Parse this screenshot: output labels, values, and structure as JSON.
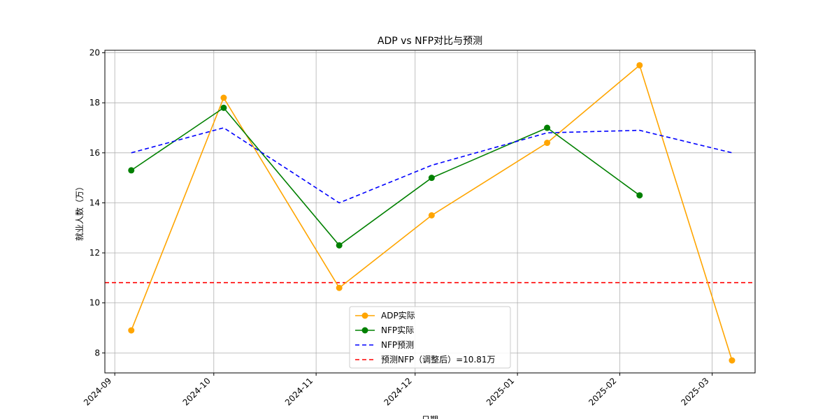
{
  "chart_data": {
    "type": "line",
    "title": "ADP vs NFP对比与预测",
    "xlabel": "日期",
    "ylabel": "就业人数（万）",
    "x_ticks": [
      "2024-09",
      "2024-10",
      "2024-11",
      "2024-12",
      "2025-01",
      "2025-02",
      "2025-03"
    ],
    "ylim": [
      7.2,
      20.1
    ],
    "y_ticks": [
      8,
      10,
      12,
      14,
      16,
      18,
      20
    ],
    "grid": true,
    "legend_position": "bottom-center",
    "series": [
      {
        "name": "ADP实际",
        "color": "#ffa500",
        "style": "solid",
        "marker": true,
        "points": [
          {
            "x": "2024-09-06",
            "y": 8.9
          },
          {
            "x": "2024-10-04",
            "y": 18.2
          },
          {
            "x": "2024-11-08",
            "y": 10.6
          },
          {
            "x": "2024-12-06",
            "y": 13.5
          },
          {
            "x": "2025-01-10",
            "y": 16.4
          },
          {
            "x": "2025-02-07",
            "y": 19.5
          },
          {
            "x": "2025-03-07",
            "y": 7.7
          }
        ]
      },
      {
        "name": "NFP实际",
        "color": "#008000",
        "style": "solid",
        "marker": true,
        "points": [
          {
            "x": "2024-09-06",
            "y": 15.3
          },
          {
            "x": "2024-10-04",
            "y": 17.8
          },
          {
            "x": "2024-11-08",
            "y": 12.3
          },
          {
            "x": "2024-12-06",
            "y": 15.0
          },
          {
            "x": "2025-01-10",
            "y": 17.0
          },
          {
            "x": "2025-02-07",
            "y": 14.3
          }
        ]
      },
      {
        "name": "NFP预测",
        "color": "#0000ff",
        "style": "dashed",
        "marker": false,
        "points": [
          {
            "x": "2024-09-06",
            "y": 16.0
          },
          {
            "x": "2024-10-04",
            "y": 17.0
          },
          {
            "x": "2024-11-08",
            "y": 14.0
          },
          {
            "x": "2024-12-06",
            "y": 15.5
          },
          {
            "x": "2025-01-10",
            "y": 16.8
          },
          {
            "x": "2025-02-07",
            "y": 16.9
          },
          {
            "x": "2025-03-07",
            "y": 16.0
          }
        ]
      }
    ],
    "reference_line": {
      "name": "预测NFP（调整后）=10.81万",
      "y": 10.81,
      "color": "#ff0000",
      "style": "dashed"
    }
  }
}
